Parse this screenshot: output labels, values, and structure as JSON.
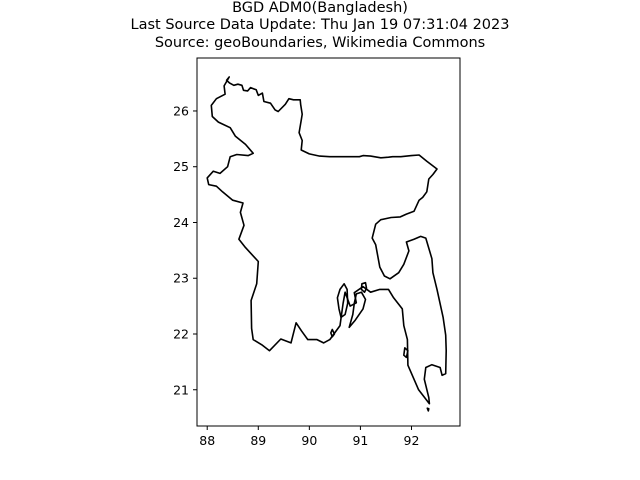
{
  "title": {
    "line1": "BGD ADM0(Bangladesh)",
    "line2": "Last Source Data Update: Thu Jan 19 07:31:04 2023",
    "line3": "Source: geoBoundaries, Wikimedia Commons"
  },
  "chart_data": {
    "type": "map",
    "title": "BGD ADM0(Bangladesh)\nLast Source Data Update: Thu Jan 19 07:31:04 2023\nSource: geoBoundaries, Wikimedia Commons",
    "xlabel": "",
    "ylabel": "",
    "x_ticks": [
      88,
      89,
      90,
      91,
      92
    ],
    "y_ticks": [
      21,
      22,
      23,
      24,
      25,
      26
    ],
    "xlim": [
      87.8,
      92.95
    ],
    "ylim": [
      20.35,
      26.95
    ],
    "grid": false,
    "line_color": "#000000",
    "outlines": [
      {
        "part": "mainland",
        "points": [
          [
            88.43,
            26.61
          ],
          [
            88.38,
            26.55
          ],
          [
            88.44,
            26.5
          ],
          [
            88.52,
            26.46
          ],
          [
            88.6,
            26.48
          ],
          [
            88.68,
            26.46
          ],
          [
            88.71,
            26.37
          ],
          [
            88.79,
            26.36
          ],
          [
            88.85,
            26.42
          ],
          [
            88.96,
            26.38
          ],
          [
            89.0,
            26.28
          ],
          [
            89.08,
            26.32
          ],
          [
            89.11,
            26.17
          ],
          [
            89.24,
            26.14
          ],
          [
            89.33,
            26.02
          ],
          [
            89.39,
            25.99
          ],
          [
            89.53,
            26.12
          ],
          [
            89.6,
            26.22
          ],
          [
            89.69,
            26.2
          ],
          [
            89.82,
            26.2
          ],
          [
            89.83,
            26.11
          ],
          [
            89.86,
            25.94
          ],
          [
            89.84,
            25.83
          ],
          [
            89.8,
            25.61
          ],
          [
            89.86,
            25.47
          ],
          [
            89.84,
            25.3
          ],
          [
            90.0,
            25.23
          ],
          [
            90.2,
            25.19
          ],
          [
            90.4,
            25.18
          ],
          [
            90.6,
            25.18
          ],
          [
            90.8,
            25.18
          ],
          [
            90.98,
            25.18
          ],
          [
            91.05,
            25.2
          ],
          [
            91.2,
            25.19
          ],
          [
            91.4,
            25.16
          ],
          [
            91.55,
            25.17
          ],
          [
            91.63,
            25.18
          ],
          [
            91.79,
            25.18
          ],
          [
            92.0,
            25.2
          ],
          [
            92.15,
            25.21
          ],
          [
            92.3,
            25.1
          ],
          [
            92.5,
            24.96
          ],
          [
            92.42,
            24.86
          ],
          [
            92.34,
            24.78
          ],
          [
            92.3,
            24.55
          ],
          [
            92.22,
            24.45
          ],
          [
            92.15,
            24.4
          ],
          [
            92.05,
            24.2
          ],
          [
            91.9,
            24.15
          ],
          [
            91.78,
            24.1
          ],
          [
            91.6,
            24.09
          ],
          [
            91.4,
            24.05
          ],
          [
            91.3,
            23.97
          ],
          [
            91.23,
            23.72
          ],
          [
            91.3,
            23.6
          ],
          [
            91.38,
            23.2
          ],
          [
            91.47,
            23.04
          ],
          [
            91.58,
            22.99
          ],
          [
            91.75,
            23.1
          ],
          [
            91.85,
            23.25
          ],
          [
            91.95,
            23.49
          ],
          [
            91.9,
            23.65
          ],
          [
            92.05,
            23.7
          ],
          [
            92.18,
            23.75
          ],
          [
            92.28,
            23.72
          ],
          [
            92.4,
            23.35
          ],
          [
            92.42,
            23.1
          ],
          [
            92.5,
            22.8
          ],
          [
            92.62,
            22.3
          ],
          [
            92.67,
            21.98
          ],
          [
            92.68,
            21.7
          ],
          [
            92.67,
            21.29
          ],
          [
            92.6,
            21.26
          ],
          [
            92.56,
            21.4
          ],
          [
            92.4,
            21.45
          ],
          [
            92.28,
            21.4
          ],
          [
            92.25,
            21.19
          ],
          [
            92.34,
            20.86
          ],
          [
            92.35,
            20.75
          ],
          [
            92.14,
            21.0
          ],
          [
            91.93,
            21.44
          ],
          [
            91.92,
            21.9
          ],
          [
            91.85,
            22.15
          ],
          [
            91.82,
            22.45
          ],
          [
            91.65,
            22.65
          ],
          [
            91.55,
            22.8
          ],
          [
            91.38,
            22.8
          ],
          [
            91.2,
            22.75
          ],
          [
            91.05,
            22.85
          ],
          [
            90.88,
            22.74
          ],
          [
            90.92,
            22.56
          ],
          [
            90.8,
            22.5
          ],
          [
            90.7,
            22.75
          ],
          [
            90.66,
            22.55
          ],
          [
            90.6,
            22.15
          ],
          [
            90.4,
            21.9
          ],
          [
            90.28,
            21.84
          ],
          [
            90.15,
            21.9
          ],
          [
            89.97,
            21.9
          ],
          [
            89.85,
            22.05
          ],
          [
            89.74,
            22.2
          ],
          [
            89.64,
            21.84
          ],
          [
            89.44,
            21.91
          ],
          [
            89.22,
            21.7
          ],
          [
            89.08,
            21.8
          ],
          [
            88.9,
            21.9
          ],
          [
            88.87,
            22.1
          ],
          [
            88.86,
            22.6
          ],
          [
            88.97,
            22.9
          ],
          [
            89.0,
            23.3
          ],
          [
            88.75,
            23.55
          ],
          [
            88.62,
            23.7
          ],
          [
            88.72,
            23.95
          ],
          [
            88.65,
            24.18
          ],
          [
            88.7,
            24.35
          ],
          [
            88.5,
            24.4
          ],
          [
            88.3,
            24.55
          ],
          [
            88.18,
            24.65
          ],
          [
            88.03,
            24.68
          ],
          [
            88.0,
            24.8
          ],
          [
            88.12,
            24.92
          ],
          [
            88.25,
            24.88
          ],
          [
            88.4,
            25.0
          ],
          [
            88.45,
            25.18
          ],
          [
            88.58,
            25.22
          ],
          [
            88.8,
            25.2
          ],
          [
            88.9,
            25.24
          ],
          [
            88.75,
            25.4
          ],
          [
            88.55,
            25.55
          ],
          [
            88.45,
            25.7
          ],
          [
            88.22,
            25.8
          ],
          [
            88.1,
            25.9
          ],
          [
            88.08,
            26.1
          ],
          [
            88.18,
            26.22
          ],
          [
            88.35,
            26.3
          ],
          [
            88.33,
            26.45
          ],
          [
            88.43,
            26.61
          ]
        ]
      },
      {
        "part": "bhola-island",
        "points": [
          [
            90.62,
            22.3
          ],
          [
            90.58,
            22.45
          ],
          [
            90.55,
            22.65
          ],
          [
            90.6,
            22.8
          ],
          [
            90.68,
            22.9
          ],
          [
            90.74,
            22.8
          ],
          [
            90.75,
            22.55
          ],
          [
            90.7,
            22.35
          ],
          [
            90.62,
            22.3
          ]
        ]
      },
      {
        "part": "hatiya-island",
        "points": [
          [
            90.78,
            22.12
          ],
          [
            90.9,
            22.25
          ],
          [
            91.05,
            22.45
          ],
          [
            91.1,
            22.62
          ],
          [
            91.02,
            22.75
          ],
          [
            90.92,
            22.72
          ],
          [
            90.88,
            22.55
          ],
          [
            90.85,
            22.35
          ],
          [
            90.78,
            22.12
          ]
        ]
      },
      {
        "part": "sandwip-island",
        "points": [
          [
            91.03,
            22.9
          ],
          [
            91.1,
            22.92
          ],
          [
            91.12,
            22.82
          ],
          [
            91.08,
            22.75
          ],
          [
            91.02,
            22.8
          ],
          [
            91.03,
            22.9
          ]
        ]
      },
      {
        "part": "maheshkhali-island",
        "points": [
          [
            91.87,
            21.75
          ],
          [
            91.85,
            21.62
          ],
          [
            91.9,
            21.58
          ],
          [
            91.93,
            21.7
          ],
          [
            91.87,
            21.75
          ]
        ]
      },
      {
        "part": "st-martins-island",
        "points": [
          [
            92.31,
            20.67
          ],
          [
            92.33,
            20.62
          ],
          [
            92.34,
            20.66
          ],
          [
            92.31,
            20.67
          ]
        ]
      },
      {
        "part": "kutubdia-island",
        "points": [
          [
            90.42,
            22.02
          ],
          [
            90.45,
            22.08
          ],
          [
            90.49,
            22.0
          ],
          [
            90.45,
            21.95
          ],
          [
            90.42,
            22.02
          ]
        ]
      }
    ]
  }
}
